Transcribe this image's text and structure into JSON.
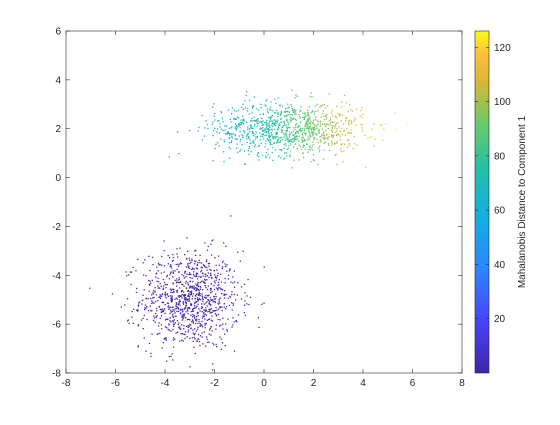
{
  "chart_data": {
    "type": "scatter",
    "title": "",
    "xlabel": "",
    "ylabel": "",
    "xlim": [
      -8,
      8
    ],
    "ylim": [
      -8,
      6
    ],
    "xticks": [
      "-8",
      "-6",
      "-4",
      "-2",
      "0",
      "2",
      "4",
      "6",
      "8"
    ],
    "yticks": [
      "-8",
      "-6",
      "-4",
      "-2",
      "0",
      "2",
      "4",
      "6"
    ],
    "grid": false,
    "colorbar": {
      "label": "Mahalanobis Distance to Component 1",
      "range": [
        0,
        126
      ],
      "ticks": [
        "20",
        "40",
        "60",
        "80",
        "100",
        "120"
      ],
      "colormap": "parula"
    },
    "series": [
      {
        "cluster_center": [
          -3,
          -5
        ],
        "cluster_spread": [
          1.0,
          1.0
        ],
        "count": 1000,
        "color_value_range": [
          0,
          5
        ]
      },
      {
        "cluster_center": [
          1,
          2
        ],
        "cluster_spread": [
          1.5,
          0.55
        ],
        "count": 1000,
        "color_value_range": [
          40,
          126
        ]
      }
    ]
  }
}
